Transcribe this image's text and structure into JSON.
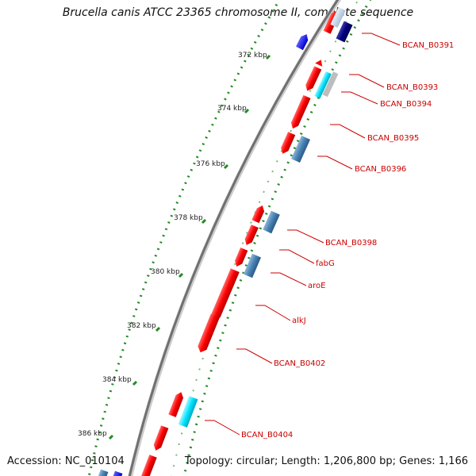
{
  "title": "Brucella canis ATCC 23365 chromosome II, complete sequence",
  "accession": "Accession: NC_010104",
  "topology": "Topology: circular; Length: 1,206,800 bp; Genes: 1,166",
  "colors": {
    "backbone": "#888888",
    "cds": "#ff0000",
    "rna": "#00e5ff",
    "pseudogene": "#4682b4",
    "strong": "#000080",
    "ticks": "#228b22",
    "label": "#cc0000"
  },
  "kbp_ticks": [
    "372 kbp",
    "374 kbp",
    "376 kbp",
    "378 kbp",
    "380 kbp",
    "382 kbp",
    "384 kbp",
    "386 kbp"
  ],
  "gene_labels": [
    "BCAN_B0391",
    "BCAN_B0393",
    "BCAN_B0394",
    "BCAN_B0395",
    "BCAN_B0396",
    "BCAN_B0398",
    "fabG",
    "aroE",
    "alkJ",
    "BCAN_B0402",
    "BCAN_B0404"
  ]
}
